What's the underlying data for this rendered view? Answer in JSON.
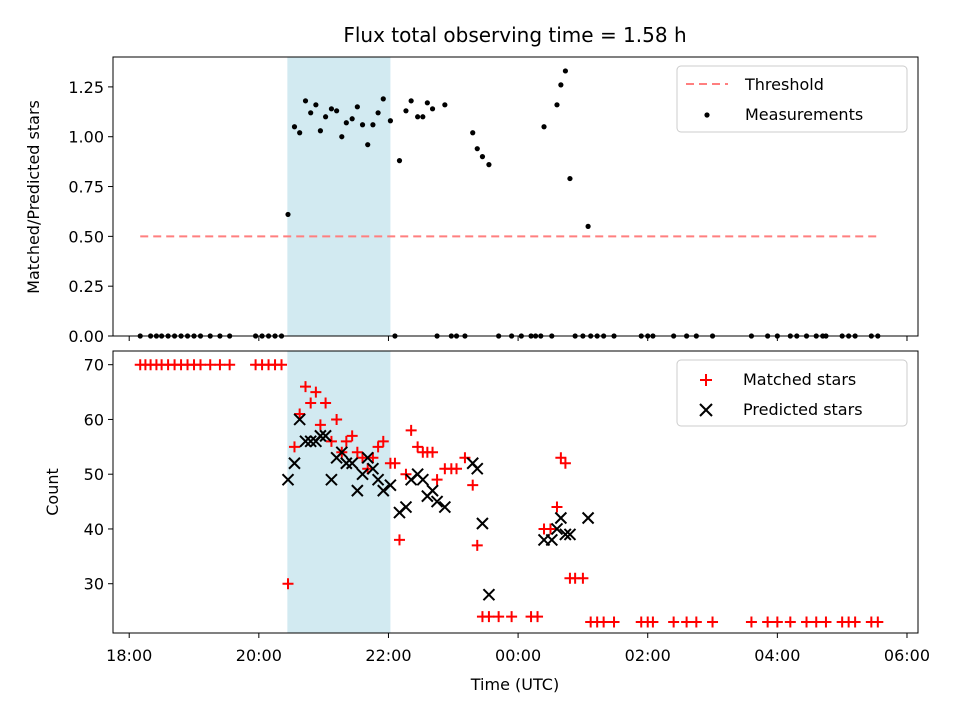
{
  "chart_data": {
    "title": "Flux total observing time = 1.58 h",
    "colors": {
      "threshold": "#ff7f7f",
      "measurement": "#000000",
      "matched": "#ff0000",
      "predicted": "#000000",
      "shade": "#add8e6"
    },
    "x_axis": {
      "label": "Time (UTC)",
      "range_hours": [
        17.75,
        30.17
      ],
      "ticks": [
        18,
        20,
        22,
        24,
        26,
        28,
        30
      ],
      "tick_labels": [
        "18:00",
        "20:00",
        "22:00",
        "00:00",
        "02:00",
        "04:00",
        "06:00"
      ]
    },
    "shaded_interval_hours": [
      20.44,
      22.03
    ],
    "panels": [
      {
        "name": "ratio",
        "type": "scatter",
        "ylabel": "Matched/Predicted stars",
        "ylim": [
          0,
          1.4
        ],
        "yticks": [
          0.0,
          0.25,
          0.5,
          0.75,
          1.0,
          1.25
        ],
        "ytick_labels": [
          "0.00",
          "0.25",
          "0.50",
          "0.75",
          "1.00",
          "1.25"
        ],
        "threshold": {
          "label": "Threshold",
          "y": 0.5,
          "x_range": [
            18.17,
            29.57
          ]
        },
        "legend": [
          "Threshold",
          "Measurements"
        ],
        "series": [
          {
            "name": "Measurements",
            "marker": "dot",
            "points": [
              [
                18.17,
                0
              ],
              [
                18.33,
                0
              ],
              [
                18.42,
                0
              ],
              [
                18.5,
                0
              ],
              [
                18.6,
                0
              ],
              [
                18.7,
                0
              ],
              [
                18.8,
                0
              ],
              [
                18.9,
                0
              ],
              [
                19.0,
                0
              ],
              [
                19.1,
                0
              ],
              [
                19.25,
                0
              ],
              [
                19.4,
                0
              ],
              [
                19.55,
                0
              ],
              [
                19.95,
                0
              ],
              [
                20.05,
                0
              ],
              [
                20.15,
                0
              ],
              [
                20.25,
                0
              ],
              [
                20.35,
                0
              ],
              [
                20.45,
                0.61
              ],
              [
                20.55,
                1.05
              ],
              [
                20.63,
                1.02
              ],
              [
                20.72,
                1.18
              ],
              [
                20.8,
                1.12
              ],
              [
                20.88,
                1.16
              ],
              [
                20.95,
                1.03
              ],
              [
                21.03,
                1.1
              ],
              [
                21.12,
                1.14
              ],
              [
                21.2,
                1.13
              ],
              [
                21.28,
                1.0
              ],
              [
                21.35,
                1.07
              ],
              [
                21.44,
                1.09
              ],
              [
                21.52,
                1.15
              ],
              [
                21.6,
                1.06
              ],
              [
                21.68,
                0.96
              ],
              [
                21.76,
                1.06
              ],
              [
                21.84,
                1.12
              ],
              [
                21.92,
                1.19
              ],
              [
                22.03,
                1.08
              ],
              [
                22.1,
                0
              ],
              [
                22.17,
                0.88
              ],
              [
                22.27,
                1.13
              ],
              [
                22.35,
                1.18
              ],
              [
                22.45,
                1.1
              ],
              [
                22.53,
                1.1
              ],
              [
                22.6,
                1.17
              ],
              [
                22.68,
                1.14
              ],
              [
                22.75,
                0
              ],
              [
                22.87,
                1.16
              ],
              [
                22.97,
                0
              ],
              [
                23.05,
                0
              ],
              [
                23.18,
                0
              ],
              [
                23.3,
                1.02
              ],
              [
                23.37,
                0.94
              ],
              [
                23.45,
                0.9
              ],
              [
                23.55,
                0.86
              ],
              [
                23.7,
                0
              ],
              [
                23.9,
                0
              ],
              [
                24.05,
                0
              ],
              [
                24.2,
                0
              ],
              [
                24.27,
                0
              ],
              [
                24.35,
                0
              ],
              [
                24.4,
                1.05
              ],
              [
                24.52,
                0
              ],
              [
                24.6,
                1.16
              ],
              [
                24.66,
                1.26
              ],
              [
                24.73,
                1.33
              ],
              [
                24.8,
                0.79
              ],
              [
                24.88,
                0
              ],
              [
                25.0,
                0
              ],
              [
                25.08,
                0.55
              ],
              [
                25.12,
                0
              ],
              [
                25.22,
                0
              ],
              [
                25.32,
                0
              ],
              [
                25.48,
                0
              ],
              [
                25.9,
                0
              ],
              [
                26.0,
                0
              ],
              [
                26.08,
                0
              ],
              [
                26.4,
                0
              ],
              [
                26.6,
                0
              ],
              [
                26.75,
                0
              ],
              [
                27.0,
                0
              ],
              [
                27.6,
                0
              ],
              [
                27.85,
                0
              ],
              [
                28.0,
                0
              ],
              [
                28.2,
                0
              ],
              [
                28.3,
                0
              ],
              [
                28.45,
                0
              ],
              [
                28.6,
                0
              ],
              [
                28.7,
                0
              ],
              [
                28.75,
                0
              ],
              [
                29.0,
                0
              ],
              [
                29.1,
                0
              ],
              [
                29.2,
                0
              ],
              [
                29.45,
                0
              ],
              [
                29.55,
                0
              ]
            ]
          }
        ]
      },
      {
        "name": "count",
        "type": "scatter",
        "ylabel": "Count",
        "ylim": [
          21,
          72.5
        ],
        "yticks": [
          30,
          40,
          50,
          60,
          70
        ],
        "ytick_labels": [
          "30",
          "40",
          "50",
          "60",
          "70"
        ],
        "legend": [
          "Matched stars",
          "Predicted stars"
        ],
        "series": [
          {
            "name": "Matched stars",
            "marker": "plus",
            "points": [
              [
                18.17,
                70
              ],
              [
                18.25,
                70
              ],
              [
                18.33,
                70
              ],
              [
                18.42,
                70
              ],
              [
                18.5,
                70
              ],
              [
                18.6,
                70
              ],
              [
                18.7,
                70
              ],
              [
                18.8,
                70
              ],
              [
                18.9,
                70
              ],
              [
                19.0,
                70
              ],
              [
                19.1,
                70
              ],
              [
                19.25,
                70
              ],
              [
                19.4,
                70
              ],
              [
                19.55,
                70
              ],
              [
                19.95,
                70
              ],
              [
                20.05,
                70
              ],
              [
                20.15,
                70
              ],
              [
                20.25,
                70
              ],
              [
                20.35,
                70
              ],
              [
                20.45,
                30
              ],
              [
                20.55,
                55
              ],
              [
                20.63,
                61
              ],
              [
                20.72,
                66
              ],
              [
                20.8,
                63
              ],
              [
                20.88,
                65
              ],
              [
                20.95,
                59
              ],
              [
                21.03,
                63
              ],
              [
                21.12,
                56
              ],
              [
                21.2,
                60
              ],
              [
                21.28,
                54
              ],
              [
                21.35,
                56
              ],
              [
                21.44,
                57
              ],
              [
                21.52,
                54
              ],
              [
                21.6,
                53
              ],
              [
                21.68,
                51
              ],
              [
                21.76,
                53
              ],
              [
                21.84,
                55
              ],
              [
                21.92,
                56
              ],
              [
                22.03,
                52
              ],
              [
                22.1,
                52
              ],
              [
                22.17,
                38
              ],
              [
                22.27,
                50
              ],
              [
                22.35,
                58
              ],
              [
                22.45,
                55
              ],
              [
                22.53,
                54
              ],
              [
                22.6,
                54
              ],
              [
                22.68,
                54
              ],
              [
                22.75,
                49
              ],
              [
                22.87,
                51
              ],
              [
                22.97,
                51
              ],
              [
                23.05,
                51
              ],
              [
                23.18,
                53
              ],
              [
                23.3,
                48
              ],
              [
                23.37,
                37
              ],
              [
                23.45,
                24
              ],
              [
                23.55,
                24
              ],
              [
                23.7,
                24
              ],
              [
                23.9,
                24
              ],
              [
                24.2,
                24
              ],
              [
                24.3,
                24
              ],
              [
                24.4,
                40
              ],
              [
                24.5,
                40
              ],
              [
                24.6,
                44
              ],
              [
                24.66,
                53
              ],
              [
                24.73,
                52
              ],
              [
                24.8,
                31
              ],
              [
                24.88,
                31
              ],
              [
                25.0,
                31
              ],
              [
                25.12,
                23
              ],
              [
                25.22,
                23
              ],
              [
                25.32,
                23
              ],
              [
                25.48,
                23
              ],
              [
                25.9,
                23
              ],
              [
                26.0,
                23
              ],
              [
                26.08,
                23
              ],
              [
                26.4,
                23
              ],
              [
                26.6,
                23
              ],
              [
                26.75,
                23
              ],
              [
                27.0,
                23
              ],
              [
                27.6,
                23
              ],
              [
                27.85,
                23
              ],
              [
                28.0,
                23
              ],
              [
                28.2,
                23
              ],
              [
                28.45,
                23
              ],
              [
                28.6,
                23
              ],
              [
                28.75,
                23
              ],
              [
                29.0,
                23
              ],
              [
                29.1,
                23
              ],
              [
                29.2,
                23
              ],
              [
                29.45,
                23
              ],
              [
                29.55,
                23
              ]
            ]
          },
          {
            "name": "Predicted stars",
            "marker": "x",
            "points": [
              [
                20.45,
                49
              ],
              [
                20.55,
                52
              ],
              [
                20.63,
                60
              ],
              [
                20.72,
                56
              ],
              [
                20.8,
                56
              ],
              [
                20.88,
                56
              ],
              [
                20.95,
                57
              ],
              [
                21.03,
                57
              ],
              [
                21.12,
                49
              ],
              [
                21.2,
                53
              ],
              [
                21.28,
                54
              ],
              [
                21.35,
                52
              ],
              [
                21.44,
                52
              ],
              [
                21.52,
                47
              ],
              [
                21.6,
                50
              ],
              [
                21.68,
                53
              ],
              [
                21.76,
                51
              ],
              [
                21.84,
                49
              ],
              [
                21.92,
                47
              ],
              [
                22.03,
                48
              ],
              [
                22.17,
                43
              ],
              [
                22.27,
                44
              ],
              [
                22.35,
                49
              ],
              [
                22.45,
                50
              ],
              [
                22.53,
                49
              ],
              [
                22.6,
                46
              ],
              [
                22.68,
                47
              ],
              [
                22.75,
                45
              ],
              [
                22.87,
                44
              ],
              [
                23.3,
                52
              ],
              [
                23.37,
                51
              ],
              [
                23.45,
                41
              ],
              [
                23.55,
                28
              ],
              [
                24.4,
                38
              ],
              [
                24.52,
                38
              ],
              [
                24.6,
                40
              ],
              [
                24.66,
                42
              ],
              [
                24.73,
                39
              ],
              [
                24.8,
                39
              ],
              [
                25.08,
                42
              ]
            ]
          }
        ]
      }
    ]
  }
}
